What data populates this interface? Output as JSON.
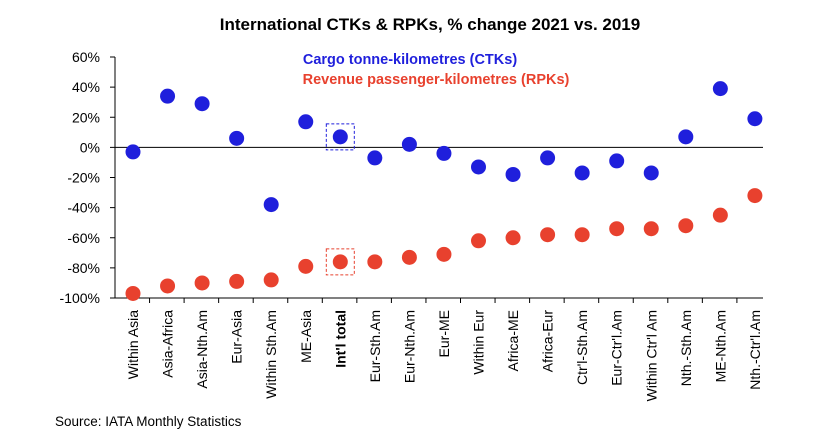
{
  "chart_data": {
    "type": "scatter",
    "title": "International CTKs & RPKs, % change 2021 vs. 2019",
    "categories": [
      "Within Asia",
      "Asia-Africa",
      "Asia-Nth.Am",
      "Eur-Asia",
      "Within Sth.Am",
      "ME-Asia",
      "Int'l total",
      "Eur-Sth.Am",
      "Eur-Nth.Am",
      "Eur-ME",
      "Within Eur",
      "Africa-ME",
      "Africa-Eur",
      "Ctr'l-Sth.Am",
      "Eur-Ctr'l.Am",
      "Within Ctr'l Am",
      "Nth.-Sth.Am",
      "ME-Nth.Am",
      "Nth.-Ctr'l.Am"
    ],
    "highlight_category": "Int'l total",
    "series": [
      {
        "name": "Cargo tonne-kilometres (CTKs)",
        "color": "#1f1fdc",
        "values": [
          -3,
          34,
          29,
          6,
          -38,
          17,
          7,
          -7,
          2,
          -4,
          -13,
          -18,
          -7,
          -17,
          -9,
          -17,
          7,
          39,
          19
        ]
      },
      {
        "name": "Revenue passenger-kilometres (RPKs)",
        "color": "#e8412e",
        "values": [
          -97,
          -92,
          -90,
          -89,
          -88,
          -79,
          -76,
          -76,
          -73,
          -71,
          -62,
          -60,
          -58,
          -58,
          -54,
          -54,
          -52,
          -45,
          -32
        ]
      }
    ],
    "yticks": [
      "60%",
      "40%",
      "20%",
      "0%",
      "-20%",
      "-40%",
      "-60%",
      "-80%",
      "-100%"
    ],
    "ylim": [
      -100,
      60
    ],
    "grid": false,
    "legend_position": "top-center"
  },
  "source": "Source: IATA Monthly Statistics"
}
